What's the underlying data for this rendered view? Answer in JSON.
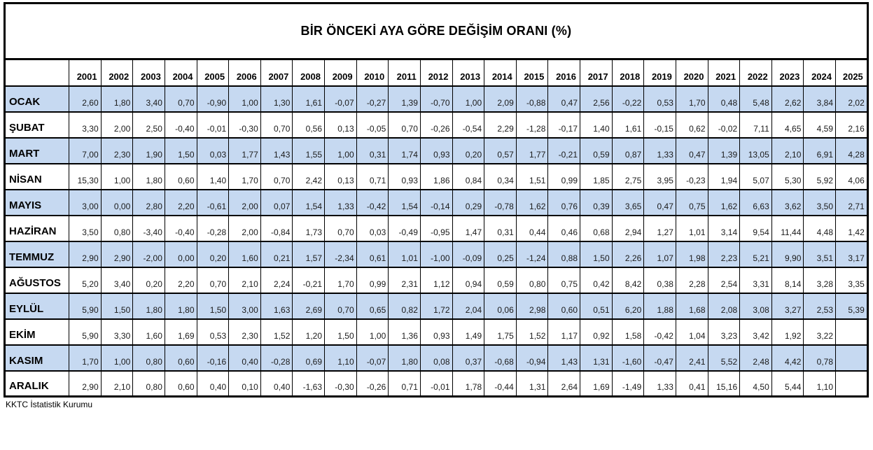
{
  "title": "BİR ÖNCEKİ AYA GÖRE DEĞİŞİM ORANI (%)",
  "source": "KKTC İstatistik Kurumu",
  "colors": {
    "alt_row_background": "#c6d9f1",
    "border": "#000000",
    "value_text": "#1a1a1a"
  },
  "table": {
    "corner_label": "",
    "years": [
      "2001",
      "2002",
      "2003",
      "2004",
      "2005",
      "2006",
      "2007",
      "2008",
      "2009",
      "2010",
      "2011",
      "2012",
      "2013",
      "2014",
      "2015",
      "2016",
      "2017",
      "2018",
      "2019",
      "2020",
      "2021",
      "2022",
      "2023",
      "2024",
      "2025"
    ],
    "rows": [
      {
        "month": "OCAK",
        "values": [
          "2,60",
          "1,80",
          "3,40",
          "0,70",
          "-0,90",
          "1,00",
          "1,30",
          "1,61",
          "-0,07",
          "-0,27",
          "1,39",
          "-0,70",
          "1,00",
          "2,09",
          "-0,88",
          "0,47",
          "2,56",
          "-0,22",
          "0,53",
          "1,70",
          "0,48",
          "5,48",
          "2,62",
          "3,84",
          "2,02"
        ]
      },
      {
        "month": "ŞUBAT",
        "values": [
          "3,30",
          "2,00",
          "2,50",
          "-0,40",
          "-0,01",
          "-0,30",
          "0,70",
          "0,56",
          "0,13",
          "-0,05",
          "0,70",
          "-0,26",
          "-0,54",
          "2,29",
          "-1,28",
          "-0,17",
          "1,40",
          "1,61",
          "-0,15",
          "0,62",
          "-0,02",
          "7,11",
          "4,65",
          "4,59",
          "2,16"
        ]
      },
      {
        "month": "MART",
        "values": [
          "7,00",
          "2,30",
          "1,90",
          "1,50",
          "0,03",
          "1,77",
          "1,43",
          "1,55",
          "1,00",
          "0,31",
          "1,74",
          "0,93",
          "0,20",
          "0,57",
          "1,77",
          "-0,21",
          "0,59",
          "0,87",
          "1,33",
          "0,47",
          "1,39",
          "13,05",
          "2,10",
          "6,91",
          "4,28"
        ]
      },
      {
        "month": "NİSAN",
        "values": [
          "15,30",
          "1,00",
          "1,80",
          "0,60",
          "1,40",
          "1,70",
          "0,70",
          "2,42",
          "0,13",
          "0,71",
          "0,93",
          "1,86",
          "0,84",
          "0,34",
          "1,51",
          "0,99",
          "1,85",
          "2,75",
          "3,95",
          "-0,23",
          "1,94",
          "5,07",
          "5,30",
          "5,92",
          "4,06"
        ]
      },
      {
        "month": "MAYIS",
        "values": [
          "3,00",
          "0,00",
          "2,80",
          "2,20",
          "-0,61",
          "2,00",
          "0,07",
          "1,54",
          "1,33",
          "-0,42",
          "1,54",
          "-0,14",
          "0,29",
          "-0,78",
          "1,62",
          "0,76",
          "0,39",
          "3,65",
          "0,47",
          "0,75",
          "1,62",
          "6,63",
          "3,62",
          "3,50",
          "2,71"
        ]
      },
      {
        "month": "HAZİRAN",
        "values": [
          "3,50",
          "0,80",
          "-3,40",
          "-0,40",
          "-0,28",
          "2,00",
          "-0,84",
          "1,73",
          "0,70",
          "0,03",
          "-0,49",
          "-0,95",
          "1,47",
          "0,31",
          "0,44",
          "0,46",
          "0,68",
          "2,94",
          "1,27",
          "1,01",
          "3,14",
          "9,54",
          "11,44",
          "4,48",
          "1,42"
        ]
      },
      {
        "month": "TEMMUZ",
        "values": [
          "2,90",
          "2,90",
          "-2,00",
          "0,00",
          "0,20",
          "1,60",
          "0,21",
          "1,57",
          "-2,34",
          "0,61",
          "1,01",
          "-1,00",
          "-0,09",
          "0,25",
          "-1,24",
          "0,88",
          "1,50",
          "2,26",
          "1,07",
          "1,98",
          "2,23",
          "5,21",
          "9,90",
          "3,51",
          "3,17"
        ]
      },
      {
        "month": "AĞUSTOS",
        "values": [
          "5,20",
          "3,40",
          "0,20",
          "2,20",
          "0,70",
          "2,10",
          "2,24",
          "-0,21",
          "1,70",
          "0,99",
          "2,31",
          "1,12",
          "0,94",
          "0,59",
          "0,80",
          "0,75",
          "0,42",
          "8,42",
          "0,38",
          "2,28",
          "2,54",
          "3,31",
          "8,14",
          "3,28",
          "3,35"
        ]
      },
      {
        "month": "EYLÜL",
        "values": [
          "5,90",
          "1,50",
          "1,80",
          "1,80",
          "1,50",
          "3,00",
          "1,63",
          "2,69",
          "0,70",
          "0,65",
          "0,82",
          "1,72",
          "2,04",
          "0,06",
          "2,98",
          "0,60",
          "0,51",
          "6,20",
          "1,88",
          "1,68",
          "2,08",
          "3,08",
          "3,27",
          "2,53",
          "5,39"
        ]
      },
      {
        "month": "EKİM",
        "values": [
          "5,90",
          "3,30",
          "1,60",
          "1,69",
          "0,53",
          "2,30",
          "1,52",
          "1,20",
          "1,50",
          "1,00",
          "1,36",
          "0,93",
          "1,49",
          "1,75",
          "1,52",
          "1,17",
          "0,92",
          "1,58",
          "-0,42",
          "1,04",
          "3,23",
          "3,42",
          "1,92",
          "3,22",
          ""
        ]
      },
      {
        "month": "KASIM",
        "values": [
          "1,70",
          "1,00",
          "0,80",
          "0,60",
          "-0,16",
          "0,40",
          "-0,28",
          "0,69",
          "1,10",
          "-0,07",
          "1,80",
          "0,08",
          "0,37",
          "-0,68",
          "-0,94",
          "1,43",
          "1,31",
          "-1,60",
          "-0,47",
          "2,41",
          "5,52",
          "2,48",
          "4,42",
          "0,78",
          ""
        ]
      },
      {
        "month": "ARALIK",
        "values": [
          "2,90",
          "2,10",
          "0,80",
          "0,60",
          "0,40",
          "0,10",
          "0,40",
          "-1,63",
          "-0,30",
          "-0,26",
          "0,71",
          "-0,01",
          "1,78",
          "-0,44",
          "1,31",
          "2,64",
          "1,69",
          "-1,49",
          "1,33",
          "0,41",
          "15,16",
          "4,50",
          "5,44",
          "1,10",
          ""
        ]
      }
    ]
  }
}
